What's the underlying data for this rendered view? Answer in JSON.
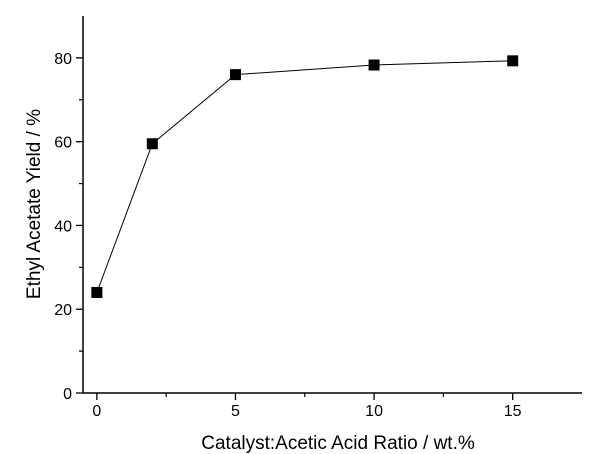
{
  "chart_data": {
    "type": "line",
    "title": "",
    "xlabel": "Catalyst:Acetic Acid Ratio / wt.%",
    "ylabel": "Ethyl Acetate Yield / %",
    "xlim": [
      -0.5,
      17.5
    ],
    "ylim": [
      0,
      90
    ],
    "xticks": [
      0,
      5,
      10,
      15
    ],
    "yticks": [
      0,
      20,
      40,
      60,
      80
    ],
    "grid": false,
    "legend": "none",
    "series": [
      {
        "x": [
          0,
          2,
          5,
          10,
          15
        ],
        "y": [
          24,
          59.5,
          76,
          78.3,
          79.3
        ],
        "marker": "square",
        "color": "#000000"
      }
    ]
  }
}
